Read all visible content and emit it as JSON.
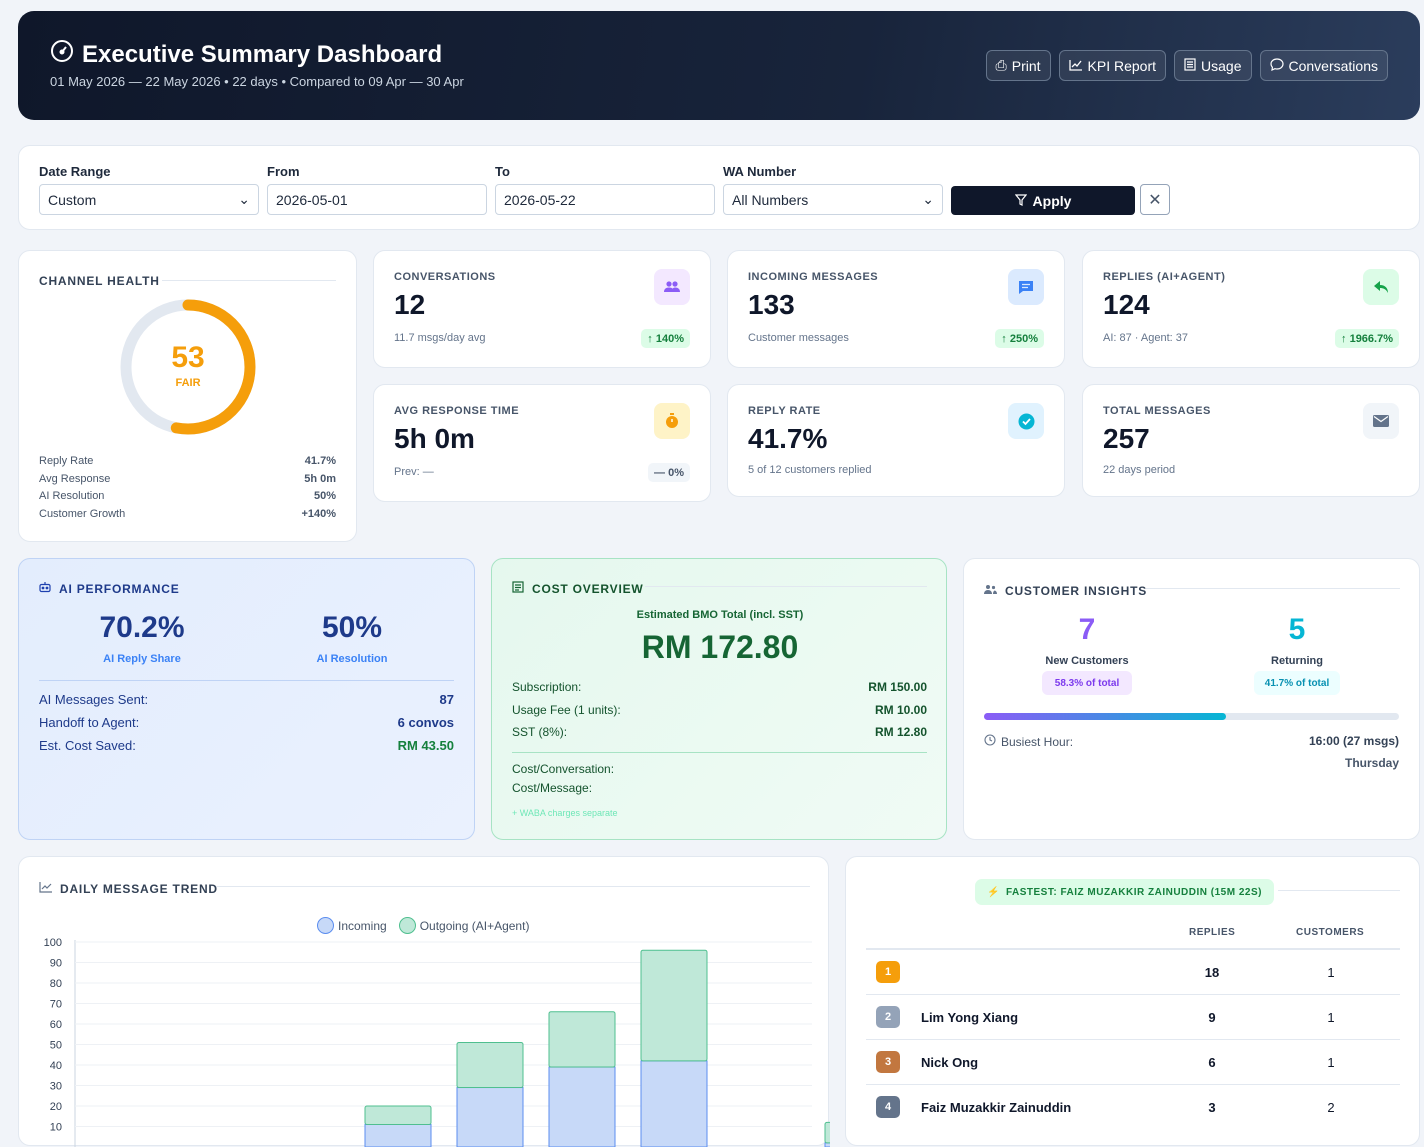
{
  "header": {
    "title": "Executive Summary Dashboard",
    "subtitle": "01 May 2026 — 22 May 2026 • 22 days • Compared to 09 Apr — 30 Apr",
    "buttons": [
      {
        "label": "Print",
        "icon": "printer-icon"
      },
      {
        "label": "KPI Report",
        "icon": "line-chart-icon"
      },
      {
        "label": "Usage",
        "icon": "receipt-icon"
      },
      {
        "label": "Conversations",
        "icon": "chat-bubble-icon"
      }
    ]
  },
  "filters": {
    "date_range_label": "Date Range",
    "date_range_value": "Custom",
    "from_label": "From",
    "from_value": "2026-05-01",
    "to_label": "To",
    "to_value": "2026-05-22",
    "wa_label": "WA Number",
    "wa_value": "All Numbers",
    "apply_label": "Apply"
  },
  "channel_health": {
    "title": "CHANNEL HEALTH",
    "score": "53",
    "score_value": 53,
    "grade": "FAIR",
    "metrics": [
      {
        "label": "Reply Rate",
        "value": "41.7%"
      },
      {
        "label": "Avg Response",
        "value": "5h 0m"
      },
      {
        "label": "AI Resolution",
        "value": "50%"
      },
      {
        "label": "Customer Growth",
        "value": "+140%"
      }
    ]
  },
  "kpis": [
    {
      "label": "CONVERSATIONS",
      "value": "12",
      "sub": "11.7 msgs/day avg",
      "badge": "↑ 140%",
      "icon": "users-icon"
    },
    {
      "label": "INCOMING MESSAGES",
      "value": "133",
      "sub": "Customer messages",
      "badge": "↑ 250%",
      "icon": "message-icon"
    },
    {
      "label": "REPLIES (AI+AGENT)",
      "value": "124",
      "sub": "AI: 87 · Agent: 37",
      "badge": "↑ 1966.7%",
      "icon": "reply-icon"
    },
    {
      "label": "AVG RESPONSE TIME",
      "value": "5h 0m",
      "sub": "Prev: —",
      "badge": "— 0%",
      "icon": "stopwatch-icon"
    },
    {
      "label": "REPLY RATE",
      "value": "41.7%",
      "sub": "5 of 12 customers replied",
      "icon": "check-circle-icon"
    },
    {
      "label": "TOTAL MESSAGES",
      "value": "257",
      "sub": "22 days period",
      "icon": "envelope-icon"
    }
  ],
  "ai_performance": {
    "title": "AI PERFORMANCE",
    "reply_share": "70.2%",
    "reply_share_label": "AI Reply Share",
    "resolution": "50%",
    "resolution_label": "AI Resolution",
    "rows": [
      {
        "label": "AI Messages Sent:",
        "value": "87"
      },
      {
        "label": "Handoff to Agent:",
        "value": "6 convos"
      },
      {
        "label": "Est. Cost Saved:",
        "value": "RM 43.50"
      }
    ]
  },
  "cost_overview": {
    "title": "COST OVERVIEW",
    "total_label": "Estimated BMO Total (incl. SST)",
    "total": "RM 172.80",
    "rows": [
      {
        "label": "Subscription:",
        "value": "RM 150.00"
      },
      {
        "label": "Usage Fee (1 units):",
        "value": "RM 10.00"
      },
      {
        "label": "SST (8%):",
        "value": "RM 12.80"
      }
    ],
    "extra_rows": [
      "Cost/Conversation:",
      "Cost/Message:"
    ],
    "note": "+ WABA charges separate"
  },
  "customer_insights": {
    "title": "CUSTOMER INSIGHTS",
    "new_value": "7",
    "new_label": "New Customers",
    "new_pct": "58.3% of total",
    "new_fraction": 0.583,
    "returning_value": "5",
    "returning_label": "Returning",
    "returning_pct": "41.7% of total",
    "busiest_label": "Busiest Hour:",
    "busiest_value": "16:00 (27 msgs)",
    "busiest_day": "Thursday"
  },
  "agents": {
    "fastest": "FASTEST: FAIZ MUZAKKIR ZAINUDDIN (15M 22S)",
    "col_replies": "REPLIES",
    "col_customers": "CUSTOMERS",
    "rows": [
      {
        "rank": "1",
        "name": "",
        "replies": "18",
        "customers": "1",
        "color": "#f59e0b"
      },
      {
        "rank": "2",
        "name": "Lim Yong Xiang",
        "replies": "9",
        "customers": "1",
        "color": "#94a3b8"
      },
      {
        "rank": "3",
        "name": "Nick Ong",
        "replies": "6",
        "customers": "1",
        "color": "#c2773f"
      },
      {
        "rank": "4",
        "name": "Faiz Muzakkir Zainuddin",
        "replies": "3",
        "customers": "2",
        "color": "#64748b"
      }
    ]
  },
  "chart_data": {
    "type": "bar",
    "title": "DAILY MESSAGE TREND",
    "legend": [
      "Incoming",
      "Outgoing (AI+Agent)"
    ],
    "legend_placement": "top-center",
    "ylim": [
      0,
      100
    ],
    "yticks": [
      10,
      20,
      30,
      40,
      50,
      60,
      70,
      80,
      90,
      100
    ],
    "series": [
      {
        "name": "Incoming",
        "values": [
          0,
          0,
          0,
          11,
          29,
          39,
          42,
          0,
          2
        ]
      },
      {
        "name": "Outgoing (AI+Agent)",
        "values": [
          0,
          0,
          0,
          9,
          22,
          27,
          54,
          0,
          10
        ]
      }
    ],
    "colors": {
      "incoming": "#c7d9f8",
      "incoming_border": "#5b8def",
      "outgoing": "#bfe8d8",
      "outgoing_border": "#4fbf8f"
    }
  }
}
